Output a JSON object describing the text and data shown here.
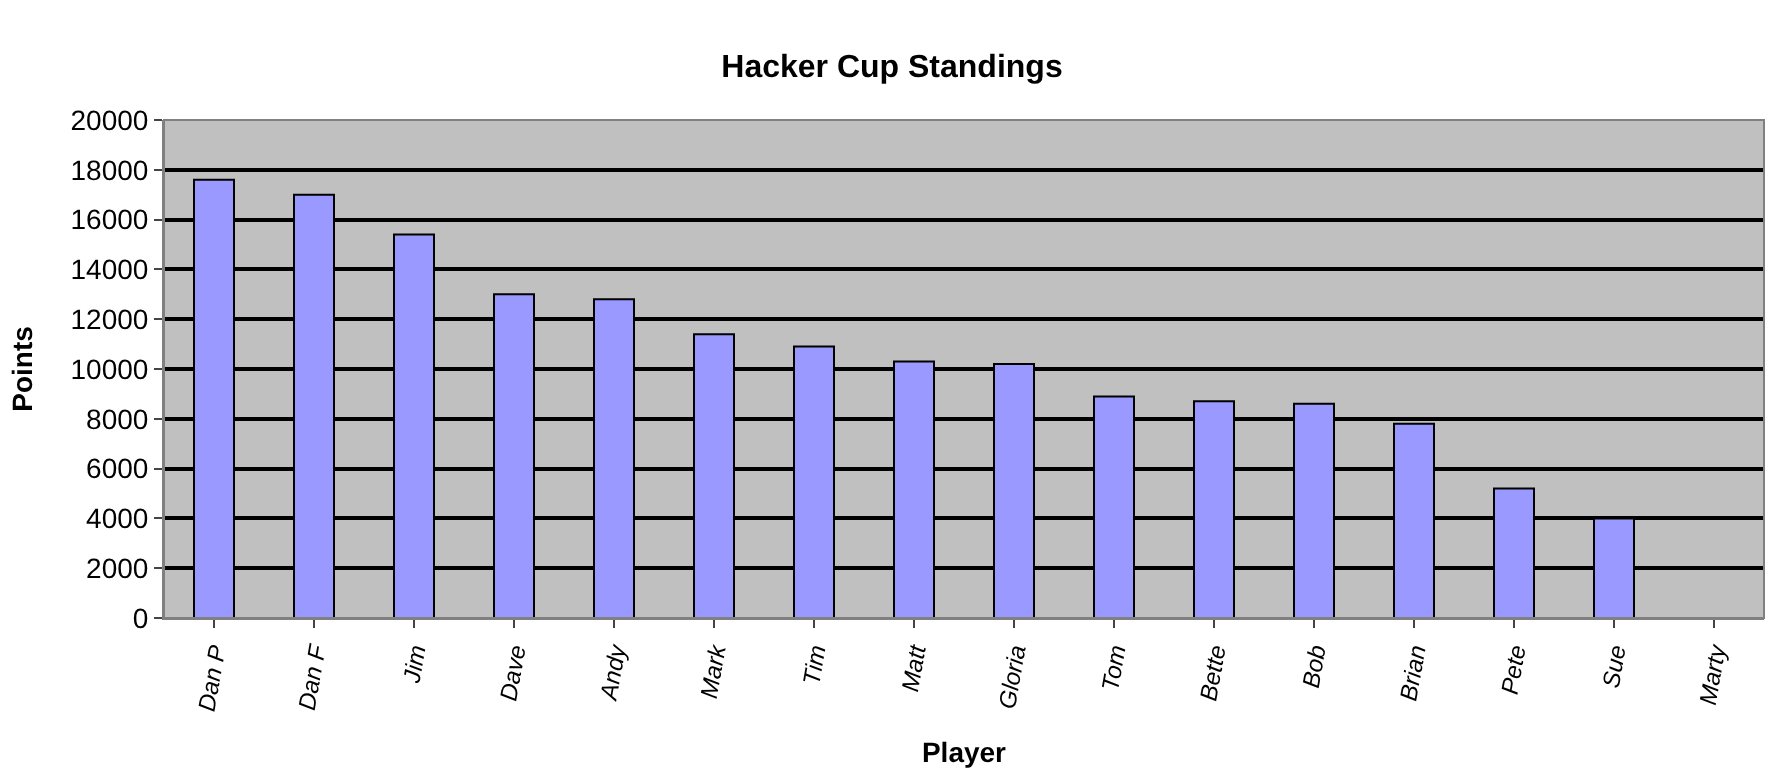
{
  "chart_data": {
    "type": "bar",
    "title": "Hacker Cup Standings",
    "xlabel": "Player",
    "ylabel": "Points",
    "categories": [
      "Dan P",
      "Dan F",
      "Jim",
      "Dave",
      "Andy",
      "Mark",
      "Tim",
      "Matt",
      "Gloria",
      "Tom",
      "Bette",
      "Bob",
      "Brian",
      "Pete",
      "Sue",
      "Marty"
    ],
    "values": [
      17600,
      17000,
      15400,
      13000,
      12800,
      11400,
      10900,
      10300,
      10200,
      8900,
      8700,
      8600,
      7800,
      5200,
      4000,
      null
    ],
    "color": "#9999ff",
    "ylim": [
      0,
      20000
    ],
    "yticks": [
      0,
      2000,
      4000,
      6000,
      8000,
      10000,
      12000,
      14000,
      16000,
      18000,
      20000
    ],
    "grid": "y",
    "legend": false
  }
}
